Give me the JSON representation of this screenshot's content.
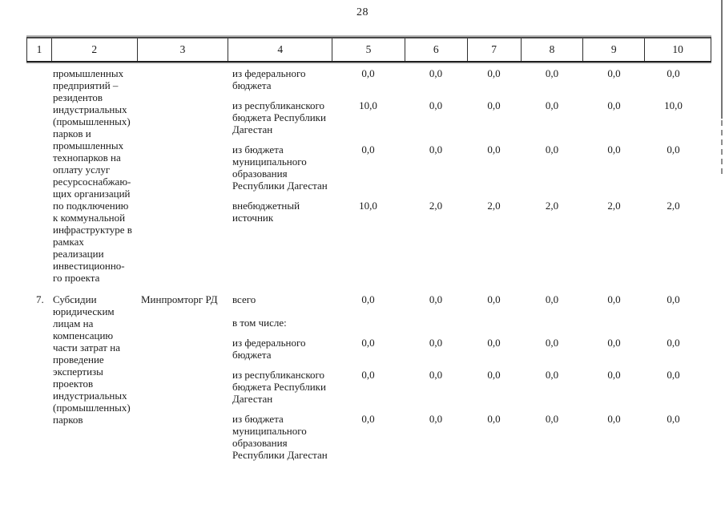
{
  "page": {
    "number": "28"
  },
  "colors": {
    "ink": "#1b1b1b",
    "table_line": "#2e2e2e"
  },
  "table": {
    "header_columns": [
      "1",
      "2",
      "3",
      "4",
      "5",
      "6",
      "7",
      "8",
      "9",
      "10"
    ],
    "rows": [
      {
        "num": "",
        "title": "промышленных\nпредприятий –\nрезидентов\nиндустриальных\n(промышленных)\nпарков и\nпромышленных\nтехнопарков на\nоплату услуг\nресурсоснабжаю-\nщих организаций\nпо подключению\nк коммунальной\nинфраструктуре в\nрамках\nреализации\nинвестиционно-\nго проекта",
        "executor": "",
        "sub_rows": [
          {
            "label": "из федерального\nбюджета",
            "values": [
              "0,0",
              "0,0",
              "0,0",
              "0,0",
              "0,0",
              "0,0"
            ]
          },
          {
            "label": "из республиканского\nбюджета Республики\nДагестан",
            "values": [
              "10,0",
              "0,0",
              "0,0",
              "0,0",
              "0,0",
              "10,0"
            ]
          },
          {
            "label": "из бюджета\nмуниципального\nобразования\nРеспублики Дагестан",
            "values": [
              "0,0",
              "0,0",
              "0,0",
              "0,0",
              "0,0",
              "0,0"
            ]
          },
          {
            "label": "внебюджетный\nисточник",
            "values": [
              "10,0",
              "2,0",
              "2,0",
              "2,0",
              "2,0",
              "2,0"
            ]
          }
        ]
      },
      {
        "num": "7.",
        "title": "Субсидии\nюридическим\nлицам на\nкомпенсацию\nчасти затрат на\nпроведение\nэкспертизы\nпроектов\nиндустриальных\n(промышленных)\nпарков",
        "executor": "Минпромторг РД",
        "sub_rows": [
          {
            "label": "всего",
            "values": [
              "0,0",
              "0,0",
              "0,0",
              "0,0",
              "0,0",
              "0,0"
            ]
          },
          {
            "label": "в том числе:",
            "values": [
              "",
              "",
              "",
              "",
              "",
              ""
            ]
          },
          {
            "label": "из федерального\nбюджета",
            "values": [
              "0,0",
              "0,0",
              "0,0",
              "0,0",
              "0,0",
              "0,0"
            ]
          },
          {
            "label": "из республиканского\nбюджета Республики\nДагестан",
            "values": [
              "0,0",
              "0,0",
              "0,0",
              "0,0",
              "0,0",
              "0,0"
            ]
          },
          {
            "label": "из бюджета\nмуниципального\nобразования\nРеспублики Дагестан",
            "values": [
              "0,0",
              "0,0",
              "0,0",
              "0,0",
              "0,0",
              "0,0"
            ]
          }
        ]
      }
    ]
  }
}
